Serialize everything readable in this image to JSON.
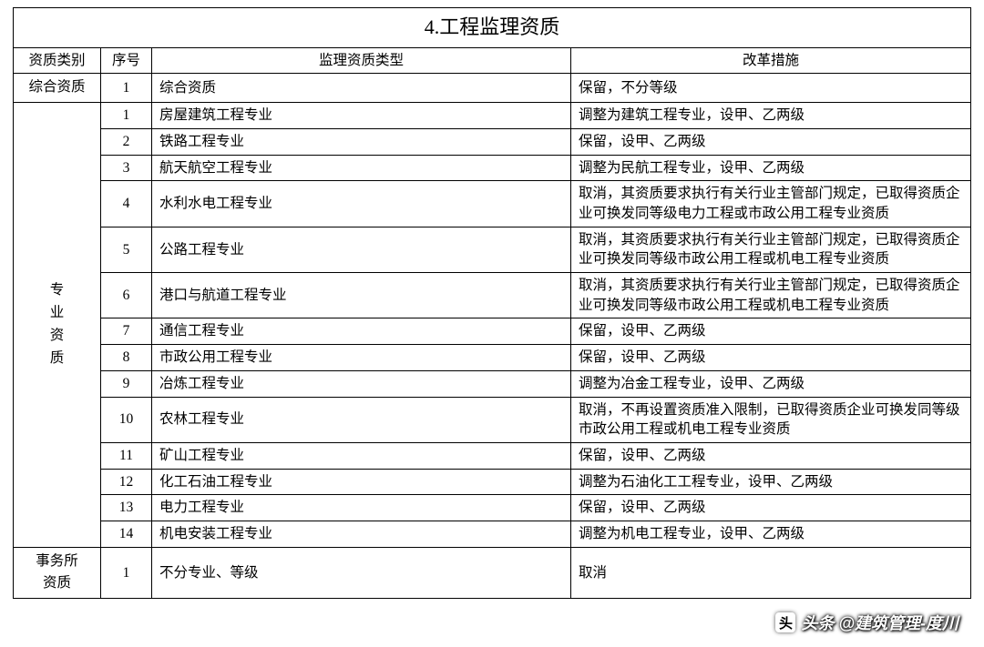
{
  "title": "4.工程监理资质",
  "headers": {
    "category": "资质类别",
    "seq": "序号",
    "type": "监理资质类型",
    "reform": "改革措施"
  },
  "groups": [
    {
      "category": "综合资质",
      "rows": [
        {
          "seq": "1",
          "type": "综合资质",
          "reform": "保留，不分等级"
        }
      ]
    },
    {
      "category": "专\n业\n资\n质",
      "rows": [
        {
          "seq": "1",
          "type": "房屋建筑工程专业",
          "reform": "调整为建筑工程专业，设甲、乙两级"
        },
        {
          "seq": "2",
          "type": "铁路工程专业",
          "reform": "保留，设甲、乙两级"
        },
        {
          "seq": "3",
          "type": "航天航空工程专业",
          "reform": "调整为民航工程专业，设甲、乙两级"
        },
        {
          "seq": "4",
          "type": "水利水电工程专业",
          "reform": "取消，其资质要求执行有关行业主管部门规定，已取得资质企业可换发同等级电力工程或市政公用工程专业资质"
        },
        {
          "seq": "5",
          "type": "公路工程专业",
          "reform": "取消，其资质要求执行有关行业主管部门规定，已取得资质企业可换发同等级市政公用工程或机电工程专业资质"
        },
        {
          "seq": "6",
          "type": "港口与航道工程专业",
          "reform": "取消，其资质要求执行有关行业主管部门规定，已取得资质企业可换发同等级市政公用工程或机电工程专业资质"
        },
        {
          "seq": "7",
          "type": "通信工程专业",
          "reform": "保留，设甲、乙两级"
        },
        {
          "seq": "8",
          "type": "市政公用工程专业",
          "reform": "保留，设甲、乙两级"
        },
        {
          "seq": "9",
          "type": "冶炼工程专业",
          "reform": "调整为冶金工程专业，设甲、乙两级"
        },
        {
          "seq": "10",
          "type": "农林工程专业",
          "reform": "取消，不再设置资质准入限制，已取得资质企业可换发同等级市政公用工程或机电工程专业资质"
        },
        {
          "seq": "11",
          "type": "矿山工程专业",
          "reform": "保留，设甲、乙两级"
        },
        {
          "seq": "12",
          "type": "化工石油工程专业",
          "reform": "调整为石油化工工程专业，设甲、乙两级"
        },
        {
          "seq": "13",
          "type": "电力工程专业",
          "reform": "保留，设甲、乙两级"
        },
        {
          "seq": "14",
          "type": "机电安装工程专业",
          "reform": "调整为机电工程专业，设甲、乙两级"
        }
      ]
    },
    {
      "category": "事务所\n资质",
      "rows": [
        {
          "seq": "1",
          "type": "不分专业、等级",
          "reform": "取消"
        }
      ]
    }
  ],
  "watermark": {
    "icon": "头",
    "text": "头条 @建筑管理-度川"
  },
  "style": {
    "background_color": "#ffffff",
    "border_color": "#000000",
    "title_fontsize": 22,
    "body_fontsize": 15.5
  }
}
